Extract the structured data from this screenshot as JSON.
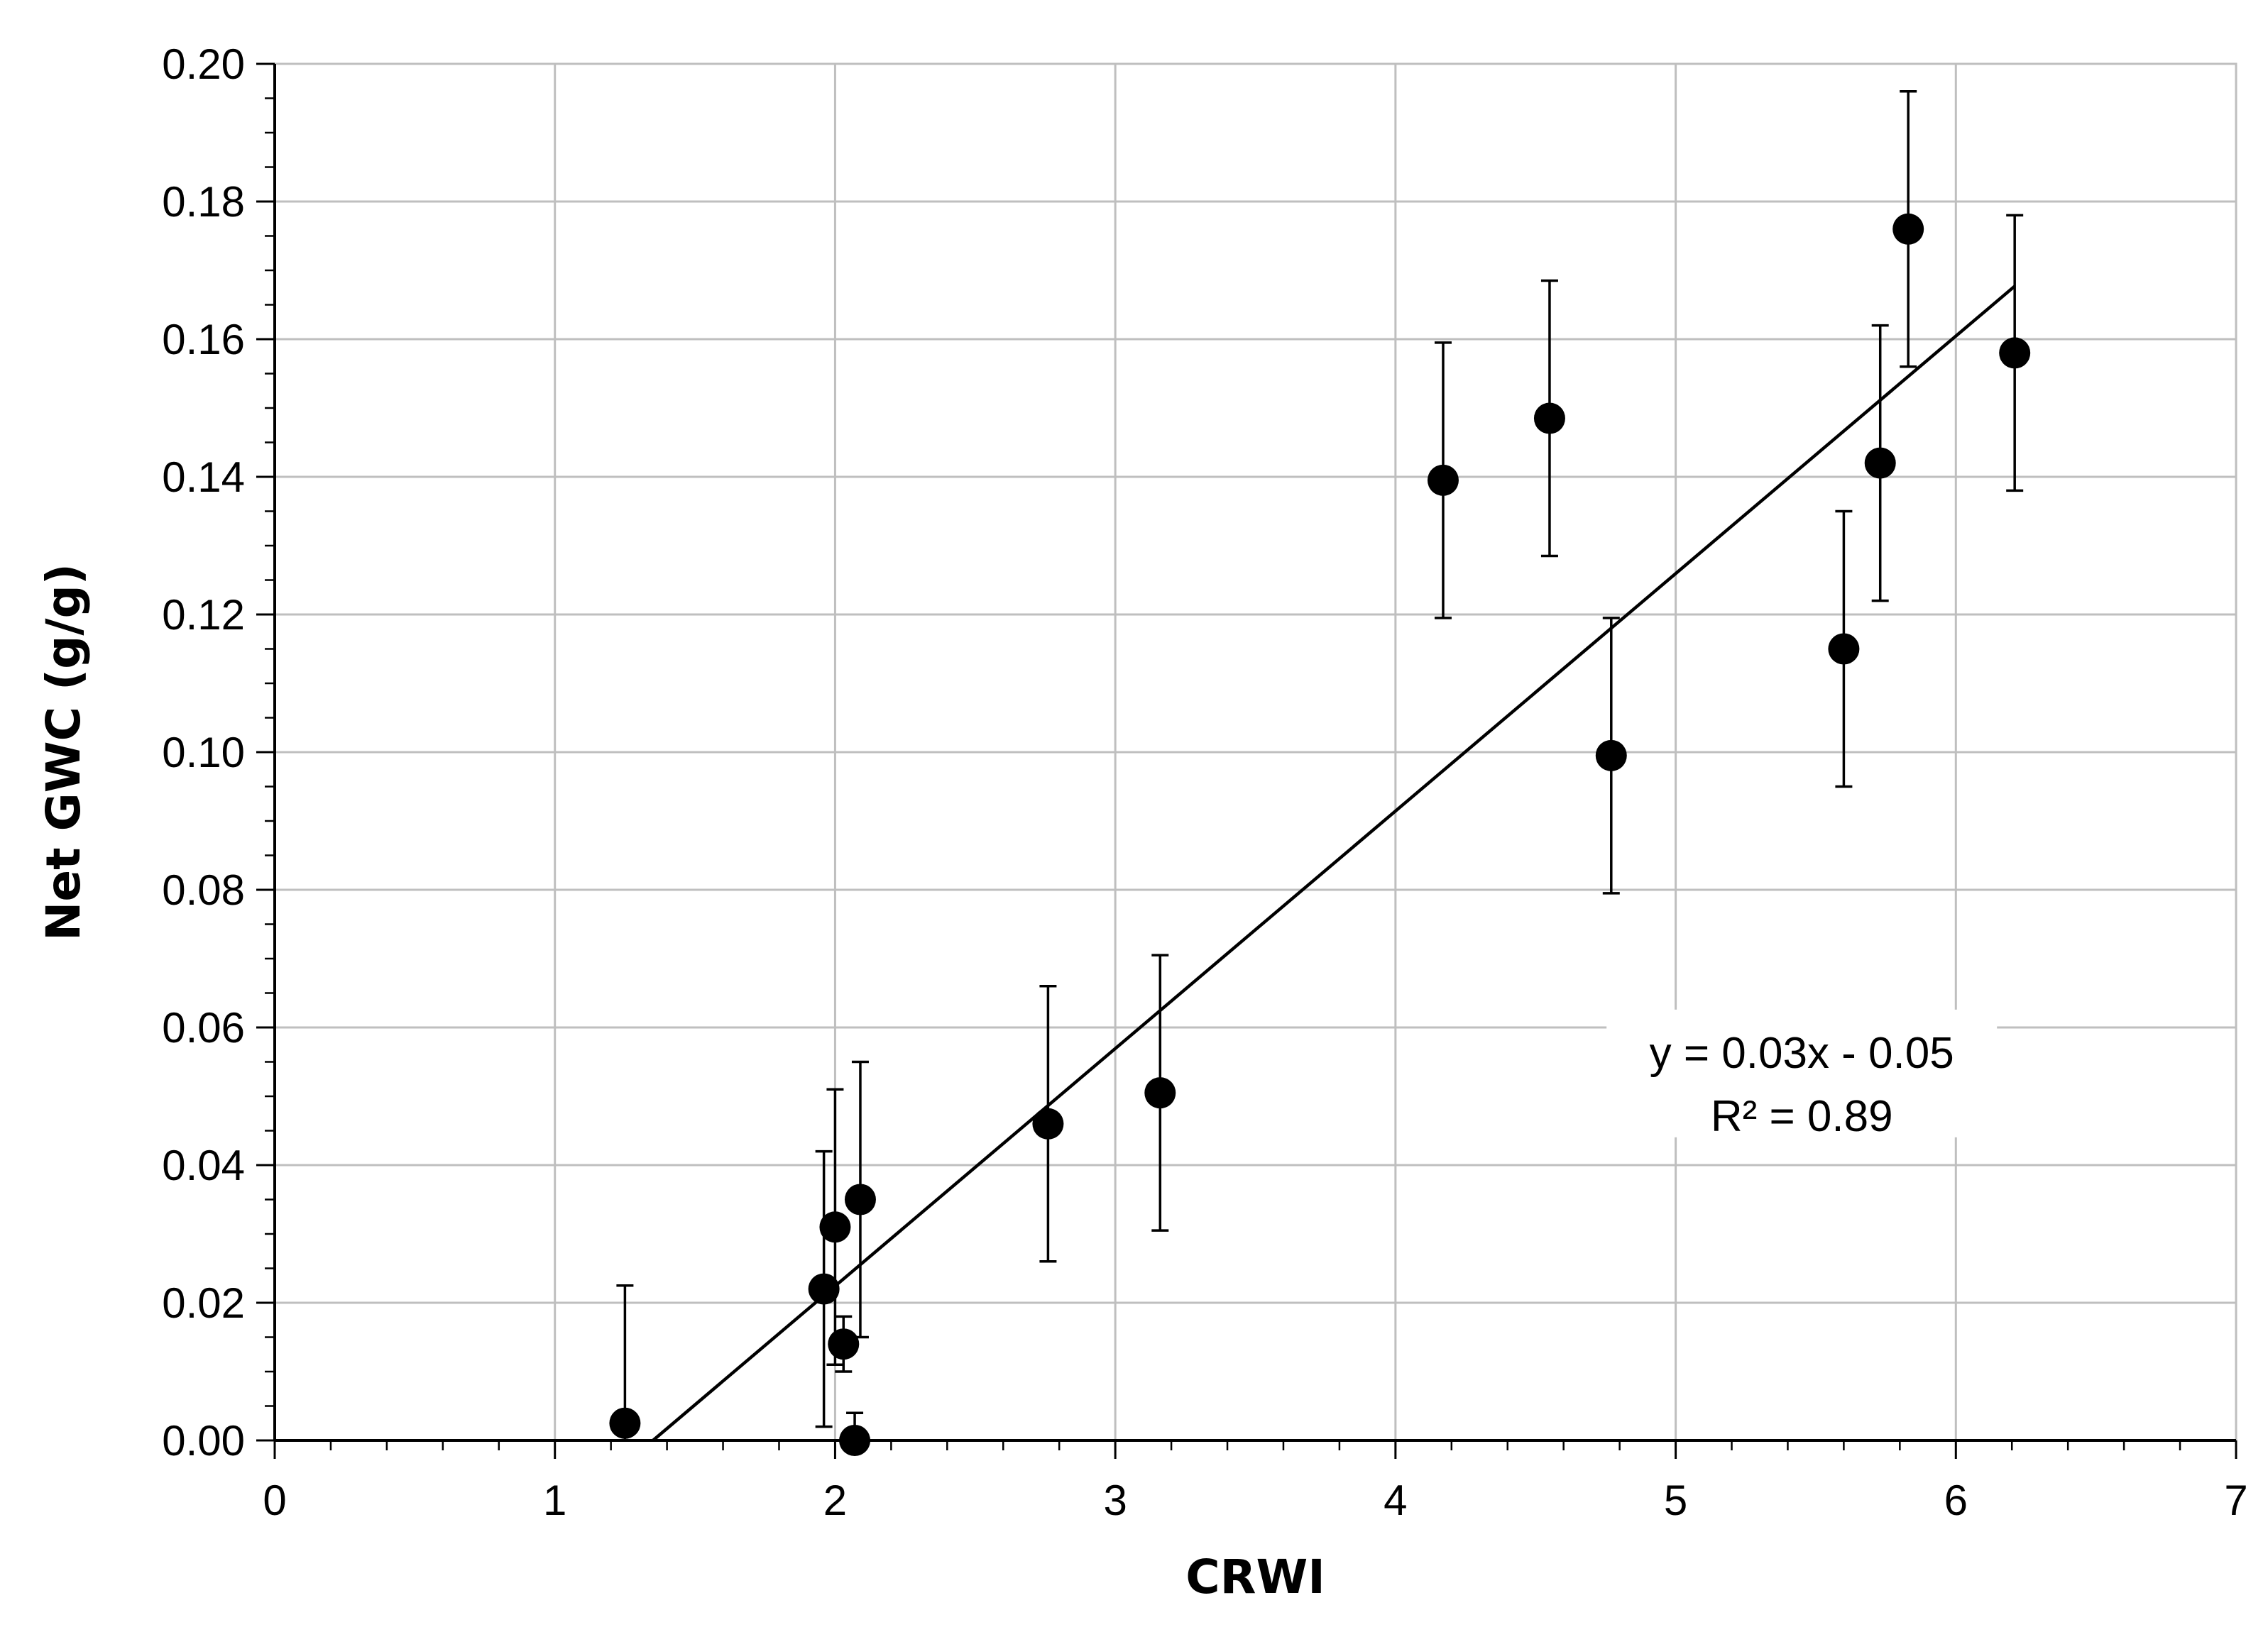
{
  "chart_data": {
    "type": "scatter",
    "xlabel": "CRWI",
    "ylabel": "Net GWC (g/g)",
    "xlim": [
      0,
      7
    ],
    "ylim": [
      0,
      0.2
    ],
    "x_ticks": [
      0,
      1,
      2,
      3,
      4,
      5,
      6,
      7
    ],
    "y_ticks": [
      0.0,
      0.02,
      0.04,
      0.06,
      0.08,
      0.1,
      0.12,
      0.14,
      0.16,
      0.18,
      0.2
    ],
    "x_tick_labels": [
      "0",
      "1",
      "2",
      "3",
      "4",
      "5",
      "6",
      "7"
    ],
    "y_tick_labels": [
      "0.00",
      "0.02",
      "0.04",
      "0.06",
      "0.08",
      "0.10",
      "0.12",
      "0.14",
      "0.16",
      "0.18",
      "0.20"
    ],
    "grid": true,
    "marker_color": "#000000",
    "points": [
      {
        "x": 1.25,
        "y": 0.0025,
        "err": 0.02
      },
      {
        "x": 1.96,
        "y": 0.022,
        "err": 0.02
      },
      {
        "x": 2.0,
        "y": 0.031,
        "err": 0.02
      },
      {
        "x": 2.03,
        "y": 0.014,
        "err": 0.004
      },
      {
        "x": 2.07,
        "y": 0.0,
        "err": 0.004
      },
      {
        "x": 2.09,
        "y": 0.035,
        "err": 0.02
      },
      {
        "x": 2.76,
        "y": 0.046,
        "err": 0.02
      },
      {
        "x": 3.16,
        "y": 0.0505,
        "err": 0.02
      },
      {
        "x": 4.17,
        "y": 0.1395,
        "err": 0.02
      },
      {
        "x": 4.55,
        "y": 0.1485,
        "err": 0.02
      },
      {
        "x": 4.77,
        "y": 0.0995,
        "err": 0.02
      },
      {
        "x": 5.6,
        "y": 0.115,
        "err": 0.02
      },
      {
        "x": 5.73,
        "y": 0.142,
        "err": 0.02
      },
      {
        "x": 5.83,
        "y": 0.176,
        "err": 0.02
      },
      {
        "x": 6.21,
        "y": 0.158,
        "err": 0.02
      }
    ],
    "trendline": {
      "x": [
        1.35,
        6.21
      ],
      "y": [
        0.0,
        0.1677
      ],
      "equation": "y = 0.03x - 0.05",
      "r_squared": "R² = 0.89"
    }
  }
}
